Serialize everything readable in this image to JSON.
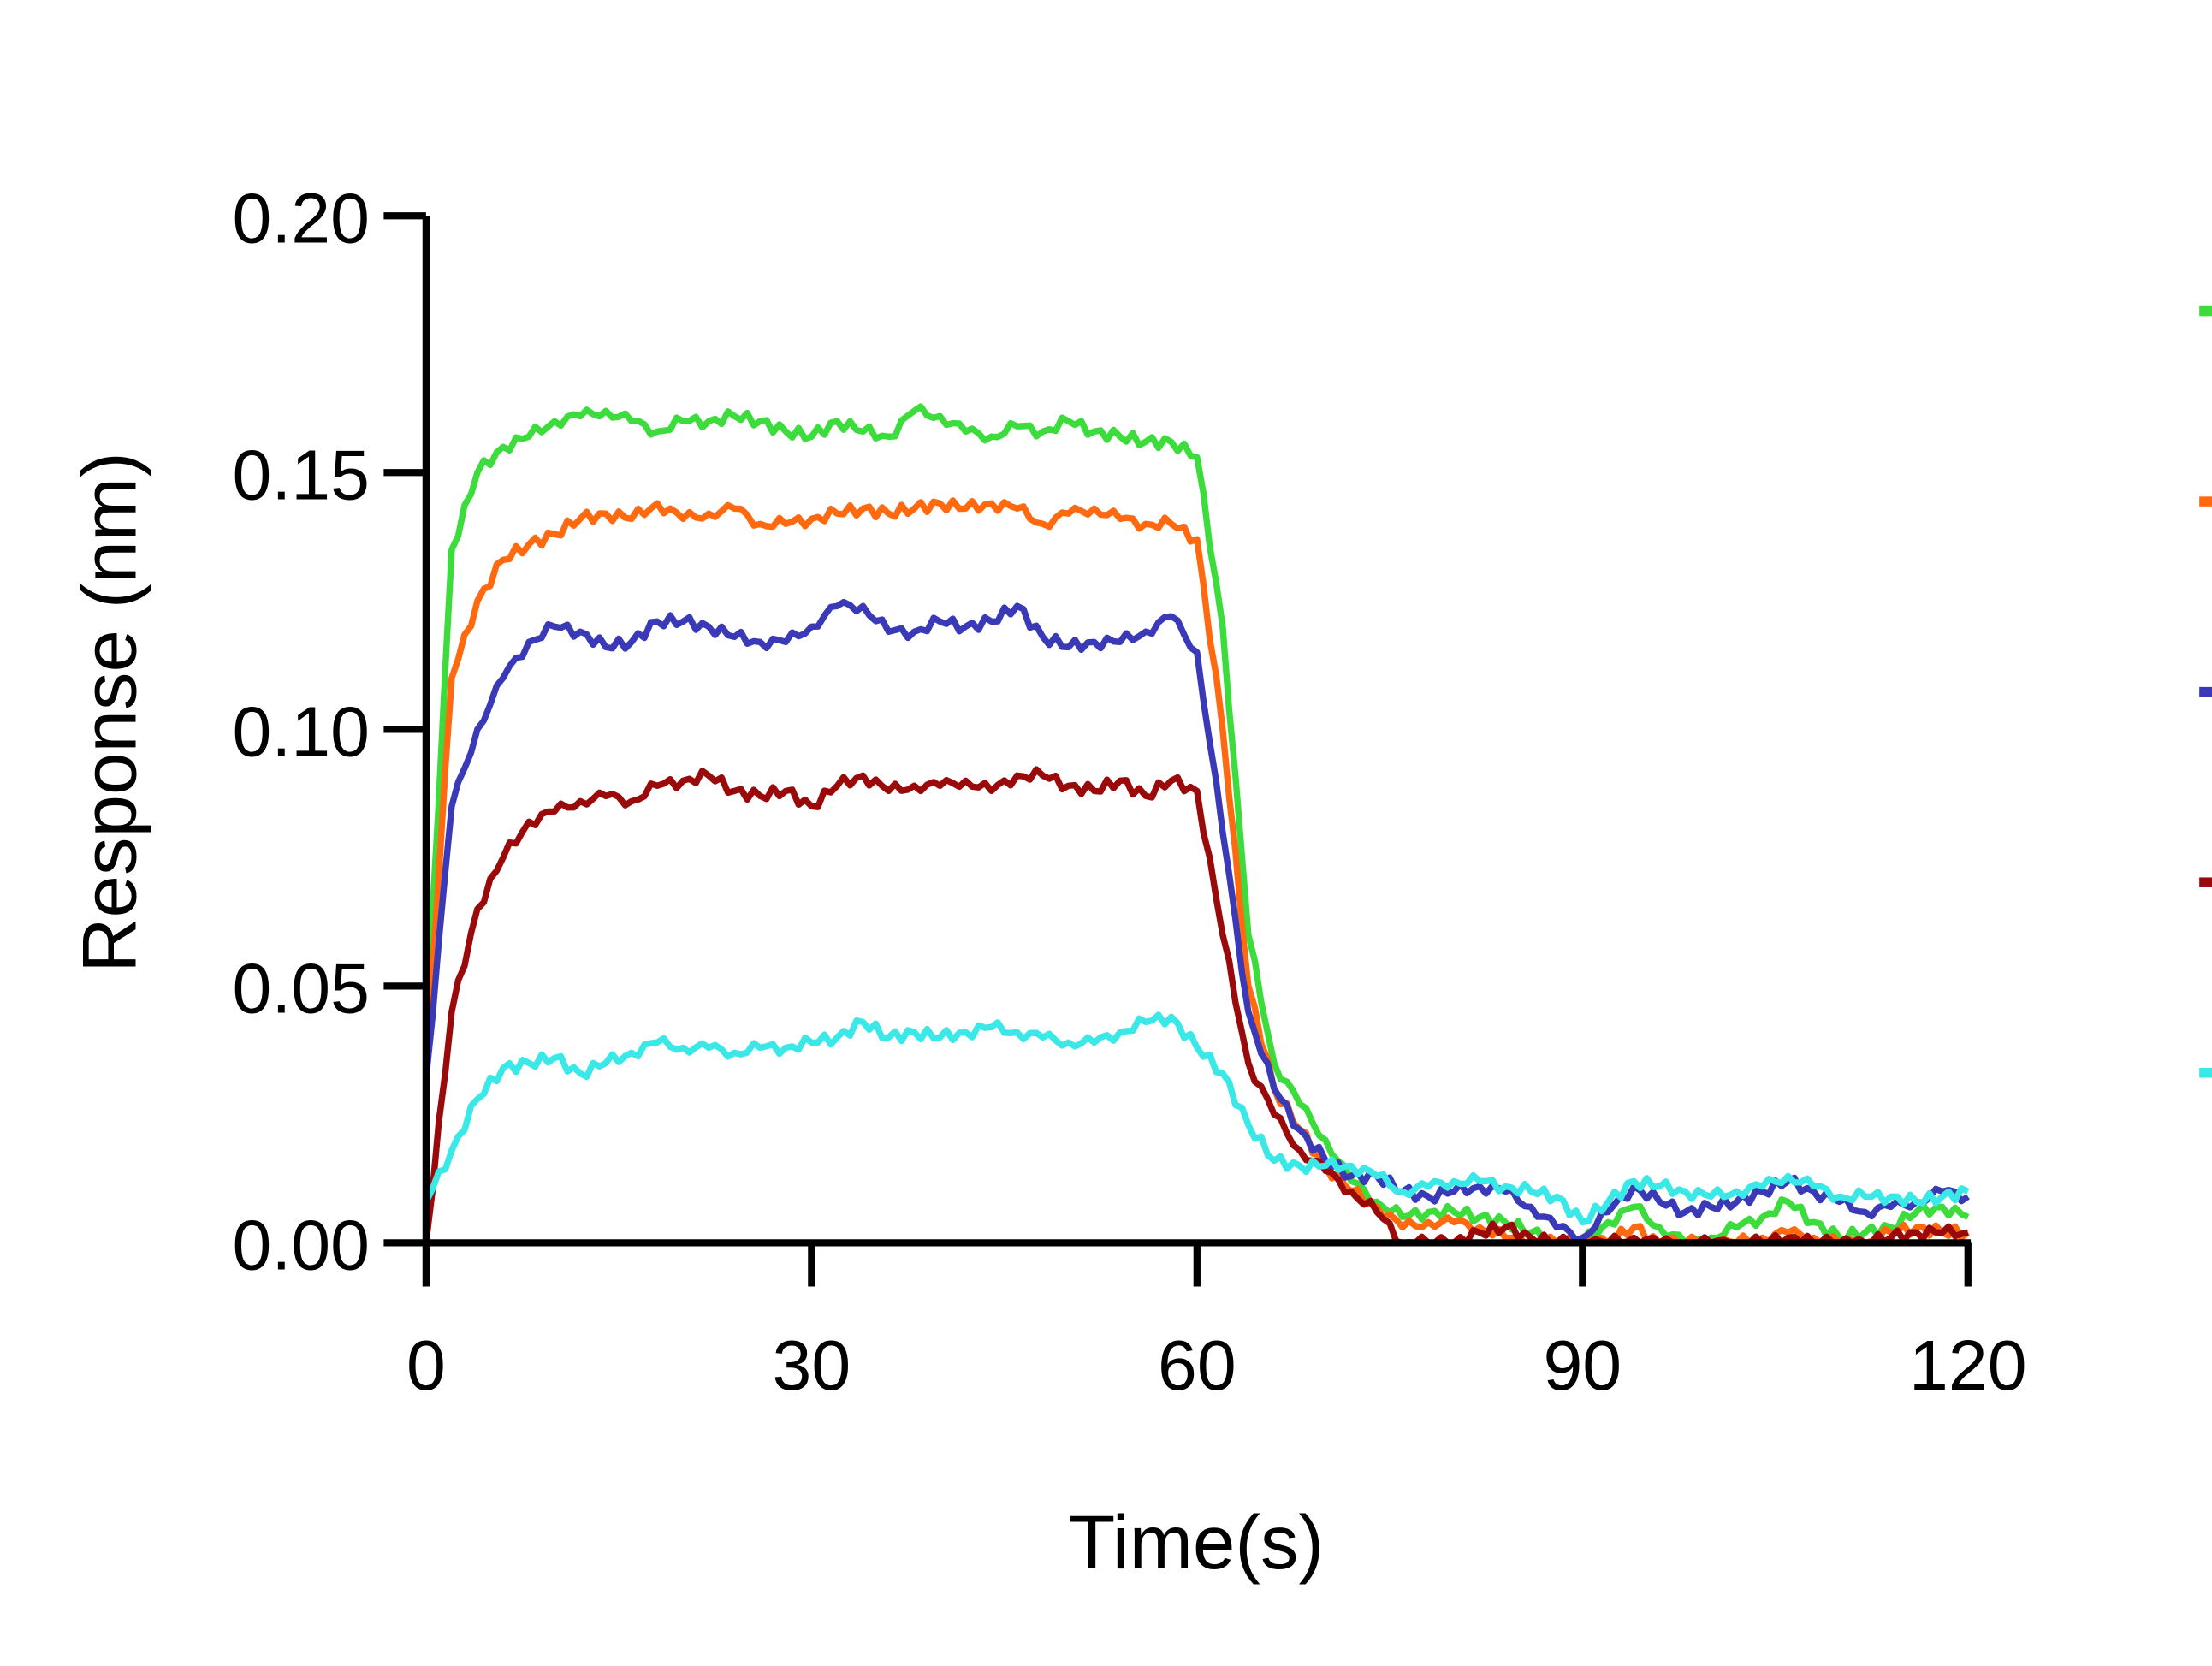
{
  "chart_data": {
    "type": "line",
    "title": "",
    "xlabel": "Time(s)",
    "ylabel": "Response (nm)",
    "xlim": [
      0,
      120
    ],
    "ylim": [
      0,
      0.2
    ],
    "xticks": [
      "0",
      "30",
      "60",
      "90",
      "120"
    ],
    "yticks": [
      "0.00",
      "0.05",
      "0.10",
      "0.15",
      "0.20"
    ],
    "grid": false,
    "legend": "right",
    "x": [
      0,
      2,
      4,
      6,
      8,
      10,
      12,
      14,
      16,
      18,
      20,
      22,
      24,
      26,
      28,
      30,
      32,
      34,
      36,
      38,
      40,
      42,
      44,
      46,
      48,
      50,
      52,
      54,
      56,
      58,
      60,
      62,
      64,
      66,
      68,
      70,
      72,
      74,
      76,
      78,
      80,
      82,
      84,
      86,
      88,
      90,
      92,
      94,
      96,
      98,
      100,
      102,
      104,
      106,
      108,
      110,
      112,
      114,
      116,
      118,
      120
    ],
    "series": [
      {
        "name": "",
        "color": "#3ddc3d",
        "values": [
          0.04,
          0.135,
          0.15,
          0.155,
          0.157,
          0.16,
          0.161,
          0.162,
          0.16,
          0.158,
          0.16,
          0.16,
          0.161,
          0.16,
          0.158,
          0.157,
          0.16,
          0.158,
          0.157,
          0.162,
          0.161,
          0.158,
          0.157,
          0.159,
          0.158,
          0.16,
          0.158,
          0.157,
          0.156,
          0.156,
          0.153,
          0.12,
          0.06,
          0.035,
          0.027,
          0.02,
          0.012,
          0.008,
          0.005,
          0.006,
          0.006,
          0.005,
          0.004,
          0.002,
          0.0,
          0.0,
          0.004,
          0.007,
          0.003,
          0.0,
          0.001,
          0.003,
          0.005,
          0.008,
          0.004,
          0.001,
          0.002,
          0.003,
          0.006,
          0.007,
          0.005
        ]
      },
      {
        "name": "",
        "color": "#ff6a10",
        "values": [
          0.035,
          0.11,
          0.125,
          0.133,
          0.136,
          0.138,
          0.141,
          0.142,
          0.141,
          0.144,
          0.141,
          0.142,
          0.143,
          0.14,
          0.14,
          0.141,
          0.142,
          0.143,
          0.142,
          0.143,
          0.144,
          0.143,
          0.144,
          0.143,
          0.14,
          0.142,
          0.143,
          0.141,
          0.14,
          0.14,
          0.137,
          0.1,
          0.05,
          0.03,
          0.022,
          0.015,
          0.01,
          0.007,
          0.003,
          0.004,
          0.004,
          0.003,
          0.001,
          0.0,
          0.0,
          0.0,
          0.0,
          0.003,
          0.0,
          0.0,
          0.0,
          0.0,
          0.001,
          0.002,
          0.001,
          0.0,
          0.0,
          0.002,
          0.003,
          0.002,
          0.002
        ]
      },
      {
        "name": "",
        "color": "#3a3ab8",
        "values": [
          0.032,
          0.085,
          0.1,
          0.11,
          0.117,
          0.12,
          0.119,
          0.116,
          0.117,
          0.121,
          0.121,
          0.12,
          0.118,
          0.117,
          0.117,
          0.12,
          0.124,
          0.124,
          0.119,
          0.119,
          0.121,
          0.12,
          0.121,
          0.124,
          0.118,
          0.116,
          0.117,
          0.117,
          0.119,
          0.122,
          0.115,
          0.08,
          0.045,
          0.03,
          0.022,
          0.016,
          0.013,
          0.013,
          0.01,
          0.009,
          0.01,
          0.011,
          0.01,
          0.007,
          0.003,
          0.001,
          0.006,
          0.011,
          0.008,
          0.006,
          0.007,
          0.008,
          0.01,
          0.012,
          0.01,
          0.008,
          0.006,
          0.007,
          0.008,
          0.01,
          0.009
        ]
      },
      {
        "name": "",
        "color": "#9b0a0a",
        "values": [
          0.0,
          0.045,
          0.065,
          0.075,
          0.082,
          0.084,
          0.086,
          0.087,
          0.086,
          0.089,
          0.09,
          0.091,
          0.088,
          0.087,
          0.088,
          0.085,
          0.089,
          0.091,
          0.088,
          0.089,
          0.089,
          0.09,
          0.088,
          0.091,
          0.091,
          0.089,
          0.088,
          0.09,
          0.087,
          0.09,
          0.088,
          0.06,
          0.035,
          0.025,
          0.018,
          0.014,
          0.01,
          0.006,
          0.0,
          0.0,
          0.0,
          0.002,
          0.003,
          0.001,
          0.0,
          0.0,
          0.0,
          0.001,
          0.0,
          0.0,
          0.0,
          0.0,
          0.0,
          0.001,
          0.0,
          0.0,
          0.0,
          0.001,
          0.002,
          0.002,
          0.002
        ]
      },
      {
        "name": "",
        "color": "#3ae8e8",
        "values": [
          0.008,
          0.018,
          0.028,
          0.034,
          0.035,
          0.036,
          0.033,
          0.035,
          0.037,
          0.039,
          0.038,
          0.038,
          0.037,
          0.038,
          0.038,
          0.039,
          0.04,
          0.043,
          0.04,
          0.041,
          0.04,
          0.041,
          0.042,
          0.041,
          0.04,
          0.039,
          0.039,
          0.041,
          0.043,
          0.044,
          0.038,
          0.033,
          0.023,
          0.016,
          0.015,
          0.015,
          0.015,
          0.013,
          0.01,
          0.011,
          0.012,
          0.012,
          0.011,
          0.01,
          0.009,
          0.004,
          0.008,
          0.012,
          0.011,
          0.01,
          0.009,
          0.01,
          0.011,
          0.013,
          0.011,
          0.009,
          0.009,
          0.009,
          0.008,
          0.009,
          0.01
        ]
      }
    ]
  }
}
